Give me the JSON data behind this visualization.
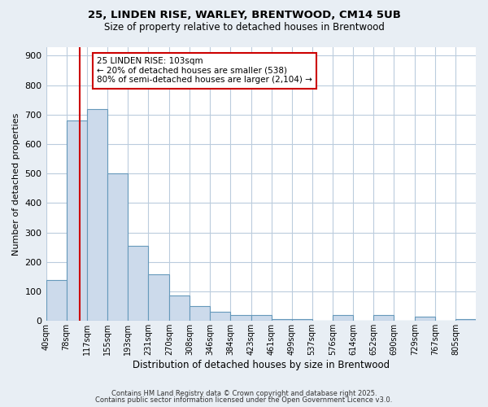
{
  "title1": "25, LINDEN RISE, WARLEY, BRENTWOOD, CM14 5UB",
  "title2": "Size of property relative to detached houses in Brentwood",
  "xlabel": "Distribution of detached houses by size in Brentwood",
  "ylabel": "Number of detached properties",
  "bin_labels": [
    "40sqm",
    "78sqm",
    "117sqm",
    "155sqm",
    "193sqm",
    "231sqm",
    "270sqm",
    "308sqm",
    "346sqm",
    "384sqm",
    "423sqm",
    "461sqm",
    "499sqm",
    "537sqm",
    "576sqm",
    "614sqm",
    "652sqm",
    "690sqm",
    "729sqm",
    "767sqm",
    "805sqm"
  ],
  "bin_starts": [
    40,
    78,
    117,
    155,
    193,
    231,
    270,
    308,
    346,
    384,
    423,
    461,
    499,
    537,
    576,
    614,
    652,
    690,
    729,
    767,
    805
  ],
  "bar_heights": [
    140,
    680,
    720,
    500,
    255,
    157,
    87,
    50,
    30,
    20,
    20,
    5,
    5,
    0,
    20,
    0,
    20,
    0,
    15,
    0,
    5
  ],
  "bar_color": "#ccdaeb",
  "bar_edge_color": "#6699bb",
  "bar_edge_width": 0.8,
  "vline_x": 103,
  "vline_color": "#cc0000",
  "annotation_title": "25 LINDEN RISE: 103sqm",
  "annotation_line1": "← 20% of detached houses are smaller (538)",
  "annotation_line2": "80% of semi-detached houses are larger (2,104) →",
  "annotation_box_color": "#cc0000",
  "ylim": [
    0,
    930
  ],
  "yticks": [
    0,
    100,
    200,
    300,
    400,
    500,
    600,
    700,
    800,
    900
  ],
  "bg_color": "#e8eef4",
  "plot_bg_color": "#ffffff",
  "grid_color": "#bbccdd",
  "footer1": "Contains HM Land Registry data © Crown copyright and database right 2025.",
  "footer2": "Contains public sector information licensed under the Open Government Licence v3.0."
}
